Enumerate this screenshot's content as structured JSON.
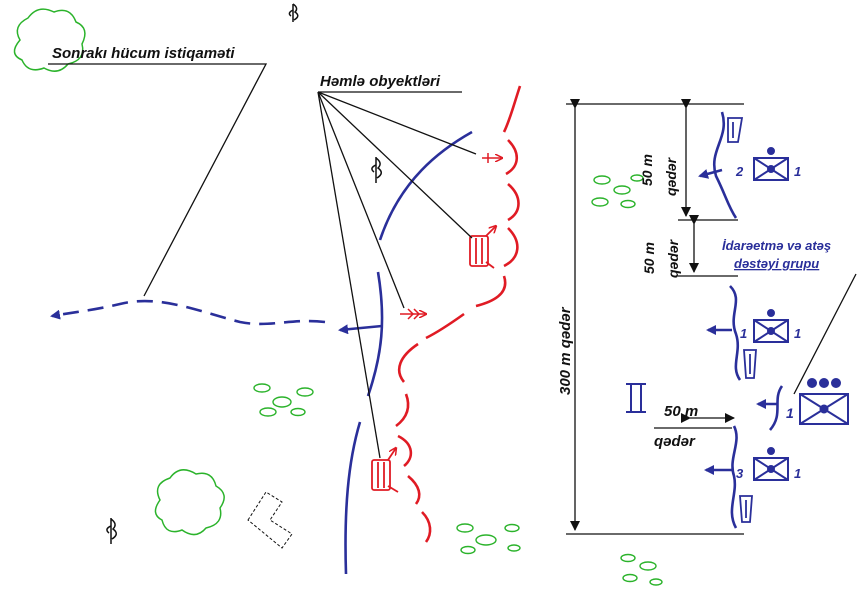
{
  "labels": {
    "next_attack_direction": "Sonrakı hücum istiqaməti",
    "assault_objects": "Həmlə obyektləri",
    "dist_300": "300 m qədər",
    "dist_50_top": "50 m",
    "qeder_top": "qədər",
    "dist_50_mid": "50 m",
    "qeder_mid": "qədər",
    "dist_50_bottom": "50 m",
    "qeder_bottom": "qədər",
    "control_group_line1": "İdarəetmə və atəş",
    "control_group_line2": "dəstəyi grupu",
    "unit_num_1": "1",
    "unit_num_2": "2",
    "unit_num_3": "3",
    "roman_two": "II"
  },
  "colors": {
    "friendly": "#2a2f9a",
    "enemy": "#e01b24",
    "vegetation": "#2bb32b",
    "ink": "#111111"
  },
  "icons": [
    "tree-icon",
    "forest-icon",
    "bush-icon",
    "building-icon",
    "platoon-symbol",
    "company-symbol",
    "vehicle-icon"
  ]
}
